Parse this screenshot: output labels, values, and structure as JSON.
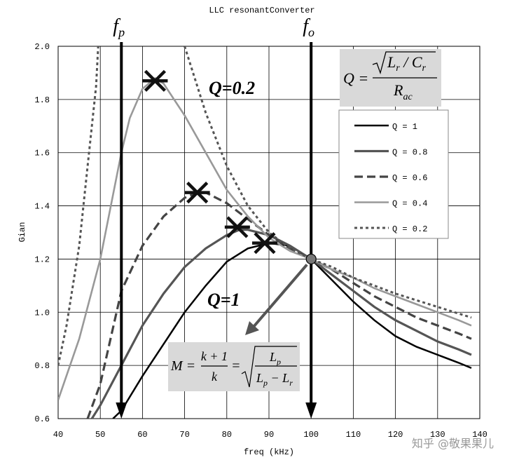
{
  "chart_data": {
    "type": "line",
    "title": "LLC resonantConverter",
    "x_label": "freq (kHz)",
    "y_label": "Gian",
    "xlim": [
      40,
      140
    ],
    "ylim": [
      0.6,
      2.0
    ],
    "xticks": [
      40,
      50,
      60,
      70,
      80,
      90,
      100,
      110,
      120,
      130,
      140
    ],
    "yticks": [
      {
        "value": 0.6,
        "label": "0.6"
      },
      {
        "value": 0.8,
        "label": "0.8"
      },
      {
        "value": 1.0,
        "label": "1.0"
      },
      {
        "value": 1.2,
        "label": "1.2"
      },
      {
        "value": 1.4,
        "label": "1.4"
      },
      {
        "value": 1.6,
        "label": "1.6"
      },
      {
        "value": 1.8,
        "label": "1.8"
      },
      {
        "value": 2.0,
        "label": "2.0"
      }
    ],
    "grid": true,
    "series": [
      {
        "name": "Q = 1",
        "color": "#000000",
        "style": "solid",
        "x": [
          53,
          55,
          60,
          65,
          70,
          75,
          80,
          85,
          90,
          95,
          100,
          105,
          110,
          115,
          120,
          125,
          130,
          135,
          138
        ],
        "values": [
          0.6,
          0.63,
          0.76,
          0.88,
          1.0,
          1.1,
          1.19,
          1.24,
          1.26,
          1.25,
          1.2,
          1.12,
          1.04,
          0.97,
          0.91,
          0.87,
          0.84,
          0.81,
          0.79
        ]
      },
      {
        "name": "Q = 0.8",
        "color": "#555555",
        "style": "solid",
        "x": [
          48,
          50,
          55,
          60,
          65,
          70,
          75,
          80,
          83,
          85,
          90,
          95,
          100,
          105,
          110,
          115,
          120,
          125,
          130,
          135,
          138
        ],
        "values": [
          0.6,
          0.65,
          0.8,
          0.95,
          1.07,
          1.17,
          1.24,
          1.29,
          1.31,
          1.31,
          1.29,
          1.25,
          1.2,
          1.14,
          1.08,
          1.02,
          0.97,
          0.93,
          0.89,
          0.86,
          0.84
        ]
      },
      {
        "name": "Q = 0.6",
        "color": "#444444",
        "style": "dashed",
        "x": [
          47,
          50,
          55,
          60,
          65,
          70,
          73,
          75,
          80,
          85,
          90,
          95,
          100,
          105,
          110,
          115,
          120,
          125,
          130,
          135,
          138
        ],
        "values": [
          0.6,
          0.73,
          1.08,
          1.25,
          1.36,
          1.43,
          1.45,
          1.45,
          1.41,
          1.35,
          1.29,
          1.24,
          1.2,
          1.16,
          1.11,
          1.06,
          1.02,
          0.98,
          0.95,
          0.92,
          0.9
        ]
      },
      {
        "name": "Q = 0.4",
        "color": "#999999",
        "style": "solid",
        "x": [
          40,
          45,
          50,
          55,
          57,
          60,
          63,
          65,
          70,
          75,
          80,
          85,
          90,
          95,
          100,
          105,
          110,
          115,
          120,
          125,
          130,
          135,
          138
        ],
        "values": [
          0.67,
          0.9,
          1.2,
          1.6,
          1.73,
          1.84,
          1.88,
          1.86,
          1.74,
          1.6,
          1.46,
          1.36,
          1.28,
          1.23,
          1.2,
          1.16,
          1.13,
          1.09,
          1.06,
          1.03,
          1.0,
          0.97,
          0.95
        ]
      },
      {
        "name": "Q = 0.2",
        "color": "#555555",
        "style": "dotted",
        "x": [
          40,
          42,
          45,
          47,
          49,
          49.5,
          60,
          70,
          75,
          80,
          85,
          90,
          95,
          100,
          105,
          110,
          120,
          130,
          138
        ],
        "values": [
          0.8,
          0.95,
          1.25,
          1.55,
          1.85,
          2.0,
          null,
          2.0,
          1.75,
          1.55,
          1.4,
          1.3,
          1.24,
          1.2,
          1.17,
          1.13,
          1.07,
          1.02,
          0.98
        ]
      }
    ],
    "peak_markers": [
      {
        "x": 63,
        "y": 1.87
      },
      {
        "x": 73,
        "y": 1.45
      },
      {
        "x": 82.5,
        "y": 1.32
      },
      {
        "x": 89,
        "y": 1.26
      }
    ],
    "resonance_point": {
      "x": 100,
      "y": 1.2
    },
    "fp": {
      "x": 55,
      "label": "f",
      "sub": "p"
    },
    "fo": {
      "x": 100,
      "label": "f",
      "sub": "o"
    },
    "annotations": [
      "Q=0.2",
      "Q=1"
    ],
    "q_formula": {
      "lhs": "Q =",
      "num_a": "L",
      "num_a_sub": "r",
      "num_mid": " / C",
      "num_b_sub": "r",
      "den": "R",
      "den_sub": "ac"
    },
    "m_formula": {
      "lhs": "M =",
      "num1": "k + 1",
      "den1": "k",
      "eq": "=",
      "num2": "L",
      "num2_sub": "p",
      "den2a": "L",
      "den2a_sub": "p",
      "den2b": " − L",
      "den2b_sub": "r"
    },
    "watermark": "知乎 @敬果果儿"
  }
}
